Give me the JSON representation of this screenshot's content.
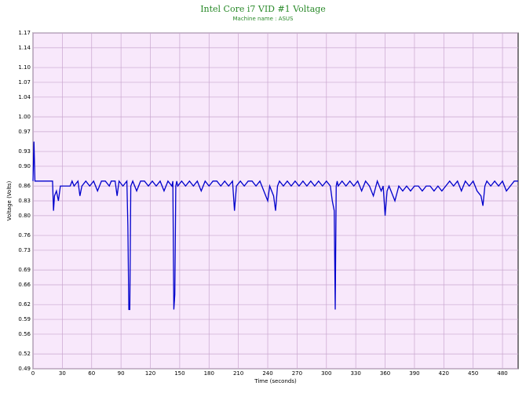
{
  "chart_data": {
    "type": "line",
    "title": "Intel Core i7 VID #1 Voltage",
    "subtitle": "Machine name : ASUS",
    "x_label": "Time (seconds)",
    "y_label": "Voltage (Volts)",
    "grid": true,
    "xlim": [
      0,
      496
    ],
    "ylim": [
      0.49,
      1.17
    ],
    "xticks": [
      0,
      30,
      60,
      90,
      120,
      150,
      180,
      210,
      240,
      270,
      300,
      330,
      360,
      390,
      420,
      450,
      480
    ],
    "yticks": [
      0.49,
      0.52,
      0.56,
      0.59,
      0.62,
      0.66,
      0.69,
      0.73,
      0.76,
      {
        "value": 0.8,
        "label": "0.80"
      },
      0.83,
      0.86,
      {
        "value": 0.9,
        "label": "0.90"
      },
      0.93,
      0.97,
      {
        "value": 1,
        "label": "1.00"
      },
      1.04,
      1.07,
      {
        "value": 1.1,
        "label": "1.10"
      },
      1.14,
      1.17
    ],
    "x": [
      0,
      1,
      2,
      4,
      10,
      20,
      21,
      22,
      24,
      26,
      28,
      30,
      34,
      38,
      40,
      42,
      46,
      48,
      50,
      54,
      58,
      62,
      66,
      70,
      74,
      78,
      80,
      84,
      86,
      88,
      92,
      96,
      97,
      98,
      99,
      100,
      102,
      106,
      110,
      114,
      118,
      122,
      126,
      130,
      134,
      138,
      142,
      143,
      144,
      145,
      146,
      147,
      148,
      152,
      156,
      160,
      164,
      168,
      172,
      176,
      180,
      184,
      188,
      192,
      196,
      200,
      204,
      206,
      208,
      212,
      216,
      220,
      224,
      228,
      232,
      236,
      240,
      242,
      244,
      246,
      248,
      250,
      252,
      256,
      260,
      264,
      268,
      272,
      276,
      280,
      284,
      288,
      292,
      296,
      300,
      304,
      306,
      308,
      309,
      310,
      311,
      312,
      316,
      320,
      324,
      328,
      332,
      336,
      340,
      344,
      348,
      352,
      356,
      358,
      360,
      362,
      364,
      366,
      370,
      374,
      378,
      382,
      386,
      390,
      394,
      398,
      402,
      406,
      410,
      414,
      418,
      422,
      426,
      430,
      434,
      438,
      442,
      446,
      450,
      454,
      458,
      460,
      462,
      464,
      468,
      472,
      476,
      480,
      484,
      488,
      492,
      496
    ],
    "series": [
      {
        "name": "VID #1",
        "color": "#0000cc",
        "values": [
          0.87,
          0.95,
          0.87,
          0.87,
          0.87,
          0.87,
          0.81,
          0.84,
          0.85,
          0.83,
          0.86,
          0.86,
          0.86,
          0.86,
          0.87,
          0.86,
          0.87,
          0.84,
          0.86,
          0.87,
          0.86,
          0.87,
          0.85,
          0.87,
          0.87,
          0.86,
          0.87,
          0.87,
          0.84,
          0.87,
          0.86,
          0.87,
          0.78,
          0.61,
          0.61,
          0.86,
          0.87,
          0.85,
          0.87,
          0.87,
          0.86,
          0.87,
          0.86,
          0.87,
          0.85,
          0.87,
          0.86,
          0.87,
          0.61,
          0.64,
          0.86,
          0.87,
          0.86,
          0.87,
          0.86,
          0.87,
          0.86,
          0.87,
          0.85,
          0.87,
          0.86,
          0.87,
          0.87,
          0.86,
          0.87,
          0.86,
          0.87,
          0.81,
          0.86,
          0.87,
          0.86,
          0.87,
          0.87,
          0.86,
          0.87,
          0.85,
          0.83,
          0.86,
          0.85,
          0.84,
          0.81,
          0.86,
          0.87,
          0.86,
          0.87,
          0.86,
          0.87,
          0.86,
          0.87,
          0.86,
          0.87,
          0.86,
          0.87,
          0.86,
          0.87,
          0.86,
          0.83,
          0.81,
          0.61,
          0.86,
          0.87,
          0.86,
          0.87,
          0.86,
          0.87,
          0.86,
          0.87,
          0.85,
          0.87,
          0.86,
          0.84,
          0.87,
          0.85,
          0.86,
          0.8,
          0.85,
          0.86,
          0.85,
          0.83,
          0.86,
          0.85,
          0.86,
          0.85,
          0.86,
          0.86,
          0.85,
          0.86,
          0.86,
          0.85,
          0.86,
          0.85,
          0.86,
          0.87,
          0.86,
          0.87,
          0.85,
          0.87,
          0.86,
          0.87,
          0.85,
          0.84,
          0.82,
          0.86,
          0.87,
          0.86,
          0.87,
          0.86,
          0.87,
          0.85,
          0.86,
          0.87,
          0.87
        ]
      }
    ]
  }
}
